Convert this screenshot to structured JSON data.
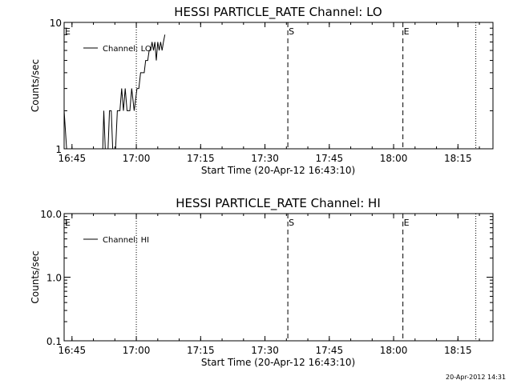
{
  "chart_data": [
    {
      "type": "line",
      "title": "HESSI PARTICLE_RATE Channel: LO",
      "xlabel": "Start Time (20-Apr-12 16:43:10)",
      "ylabel": "Counts/sec",
      "y_scale": "log",
      "ylim": [
        1,
        10
      ],
      "xlim": [
        "16:43:10",
        "18:23:10"
      ],
      "x_tick_labels": [
        "16:45",
        "17:00",
        "17:15",
        "17:30",
        "17:45",
        "18:00",
        "18:15"
      ],
      "y_tick_labels": [
        "1",
        "10"
      ],
      "legend_position": "top-left",
      "series": [
        {
          "name": "Channel: LO",
          "points": [
            [
              "16:43:10",
              2
            ],
            [
              "16:43:45",
              1
            ],
            [
              "16:44:10",
              1
            ],
            [
              "16:52:10",
              1
            ],
            [
              "16:52:25",
              2
            ],
            [
              "16:52:45",
              1
            ],
            [
              "16:53:25",
              1
            ],
            [
              "16:53:45",
              2
            ],
            [
              "16:54:10",
              2
            ],
            [
              "16:54:30",
              1
            ],
            [
              "16:55:10",
              1
            ],
            [
              "16:55:35",
              2
            ],
            [
              "16:56:10",
              2
            ],
            [
              "16:56:35",
              3
            ],
            [
              "16:57:00",
              2
            ],
            [
              "16:57:25",
              3
            ],
            [
              "16:57:50",
              2
            ],
            [
              "16:58:30",
              2
            ],
            [
              "16:58:55",
              3
            ],
            [
              "16:59:30",
              2
            ],
            [
              "17:00:10",
              3
            ],
            [
              "17:00:35",
              3
            ],
            [
              "17:01:00",
              4
            ],
            [
              "17:01:50",
              4
            ],
            [
              "17:02:10",
              5
            ],
            [
              "17:02:40",
              5
            ],
            [
              "17:03:00",
              6
            ],
            [
              "17:03:20",
              6
            ],
            [
              "17:03:40",
              7
            ],
            [
              "17:04:00",
              6
            ],
            [
              "17:04:20",
              7
            ],
            [
              "17:04:40",
              5
            ],
            [
              "17:05:00",
              7
            ],
            [
              "17:05:20",
              6
            ],
            [
              "17:05:40",
              7
            ],
            [
              "17:06:00",
              6
            ],
            [
              "17:06:20",
              7
            ],
            [
              "17:06:40",
              8
            ]
          ]
        }
      ],
      "markers": [
        {
          "label": "E",
          "time": "16:43:10",
          "style": "solid"
        },
        {
          "label": "",
          "time": "17:00:00",
          "style": "dotted"
        },
        {
          "label": "S",
          "time": "17:35:20",
          "style": "dashed"
        },
        {
          "label": "E",
          "time": "18:02:10",
          "style": "dashed"
        },
        {
          "label": "",
          "time": "18:19:10",
          "style": "dotted"
        }
      ]
    },
    {
      "type": "line",
      "title": "HESSI PARTICLE_RATE Channel: HI",
      "xlabel": "Start Time (20-Apr-12 16:43:10)",
      "ylabel": "Counts/sec",
      "y_scale": "log",
      "ylim": [
        0.1,
        10
      ],
      "xlim": [
        "16:43:10",
        "18:23:10"
      ],
      "x_tick_labels": [
        "16:45",
        "17:00",
        "17:15",
        "17:30",
        "17:45",
        "18:00",
        "18:15"
      ],
      "y_tick_labels": [
        "10.0",
        "1.0",
        "0.1"
      ],
      "legend_position": "top-left",
      "series": [
        {
          "name": "Channel: HI",
          "points": []
        }
      ],
      "markers": [
        {
          "label": "E",
          "time": "16:43:10",
          "style": "solid"
        },
        {
          "label": "",
          "time": "17:00:00",
          "style": "dotted"
        },
        {
          "label": "S",
          "time": "17:35:20",
          "style": "dashed"
        },
        {
          "label": "E",
          "time": "18:02:10",
          "style": "dashed"
        },
        {
          "label": "",
          "time": "18:19:10",
          "style": "dotted"
        }
      ]
    }
  ],
  "footer": {
    "timestamp": "20-Apr-2012 14:31"
  }
}
